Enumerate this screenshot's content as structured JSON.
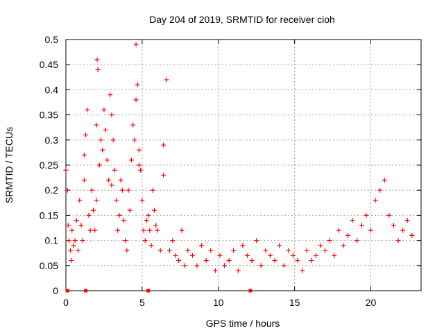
{
  "chart_data": {
    "type": "scatter",
    "title": "Day 204 of 2019, SRMTID for receiver cioh",
    "xlabel": "GPS time / hours",
    "ylabel": "SRMTID / TECUs",
    "xlim": [
      0,
      23.3
    ],
    "ylim": [
      0,
      0.5
    ],
    "x_ticks": [
      0,
      5,
      10,
      15,
      20
    ],
    "x_tick_labels": [
      "0",
      "5",
      "10",
      "15",
      "20"
    ],
    "y_ticks": [
      0,
      0.05,
      0.1,
      0.15,
      0.2,
      0.25,
      0.3,
      0.35,
      0.4,
      0.45,
      0.5
    ],
    "y_tick_labels": [
      "0",
      "0.05",
      "0.1",
      "0.15",
      "0.2",
      "0.25",
      "0.3",
      "0.35",
      "0.4",
      "0.45",
      "0.5"
    ],
    "grid": true,
    "marker": "+",
    "color": "#ff0000",
    "series": [
      {
        "name": "SRMTID",
        "x": [
          0.0,
          0.1,
          0.15,
          0.2,
          0.3,
          0.35,
          0.4,
          0.5,
          0.6,
          0.7,
          0.8,
          0.9,
          1.0,
          1.1,
          1.2,
          1.3,
          1.4,
          1.5,
          1.6,
          1.7,
          1.8,
          1.9,
          2.0,
          2.05,
          2.1,
          2.2,
          2.3,
          2.4,
          2.5,
          2.6,
          2.7,
          2.8,
          2.9,
          3.0,
          3.1,
          3.2,
          3.3,
          3.4,
          3.5,
          3.6,
          3.7,
          3.8,
          3.9,
          4.0,
          4.1,
          4.2,
          4.3,
          4.4,
          4.5,
          4.6,
          4.7,
          4.8,
          4.9,
          5.0,
          5.1,
          5.2,
          5.3,
          5.4,
          5.5,
          5.6,
          5.7,
          5.8,
          5.9,
          6.0,
          6.2,
          6.4,
          6.6,
          6.8,
          7.0,
          7.2,
          7.4,
          7.6,
          7.8,
          8.0,
          8.3,
          8.6,
          8.9,
          9.2,
          9.5,
          9.8,
          10.1,
          10.4,
          10.7,
          11.0,
          11.3,
          11.6,
          11.9,
          12.2,
          12.5,
          12.8,
          13.1,
          13.4,
          13.7,
          14.0,
          14.3,
          14.6,
          14.9,
          15.2,
          15.5,
          15.8,
          16.1,
          16.4,
          16.7,
          17.0,
          17.3,
          17.6,
          17.9,
          18.2,
          18.5,
          18.8,
          19.1,
          19.4,
          19.7,
          20.0,
          20.3,
          20.6,
          20.9,
          21.2,
          21.5,
          21.8,
          22.1,
          22.4,
          22.7,
          2.0,
          4.6,
          6.4,
          1.2,
          3.0,
          4.8
        ],
        "y": [
          0.24,
          0.2,
          0.13,
          0.1,
          0.08,
          0.06,
          0.12,
          0.09,
          0.1,
          0.14,
          0.08,
          0.18,
          0.13,
          0.1,
          0.22,
          0.31,
          0.36,
          0.15,
          0.12,
          0.2,
          0.16,
          0.12,
          0.18,
          0.46,
          0.44,
          0.25,
          0.3,
          0.28,
          0.36,
          0.32,
          0.26,
          0.22,
          0.39,
          0.35,
          0.3,
          0.24,
          0.18,
          0.12,
          0.15,
          0.22,
          0.2,
          0.14,
          0.1,
          0.08,
          0.2,
          0.16,
          0.26,
          0.33,
          0.3,
          0.49,
          0.41,
          0.28,
          0.24,
          0.18,
          0.12,
          0.1,
          0.14,
          0.15,
          0.12,
          0.09,
          0.2,
          0.16,
          0.13,
          0.12,
          0.08,
          0.29,
          0.42,
          0.08,
          0.1,
          0.07,
          0.06,
          0.12,
          0.05,
          0.08,
          0.07,
          0.05,
          0.09,
          0.06,
          0.08,
          0.04,
          0.07,
          0.05,
          0.06,
          0.08,
          0.04,
          0.09,
          0.07,
          0.06,
          0.1,
          0.05,
          0.08,
          0.07,
          0.06,
          0.09,
          0.05,
          0.08,
          0.07,
          0.06,
          0.04,
          0.08,
          0.06,
          0.07,
          0.09,
          0.08,
          0.1,
          0.07,
          0.12,
          0.09,
          0.11,
          0.14,
          0.1,
          0.13,
          0.15,
          0.12,
          0.18,
          0.2,
          0.22,
          0.15,
          0.13,
          0.1,
          0.12,
          0.14,
          0.11,
          0.33,
          0.38,
          0.23,
          0.27,
          0.21,
          0.25
        ]
      }
    ],
    "zero_markers_x": [
      0.1,
      1.3,
      5.4,
      12.1
    ]
  }
}
